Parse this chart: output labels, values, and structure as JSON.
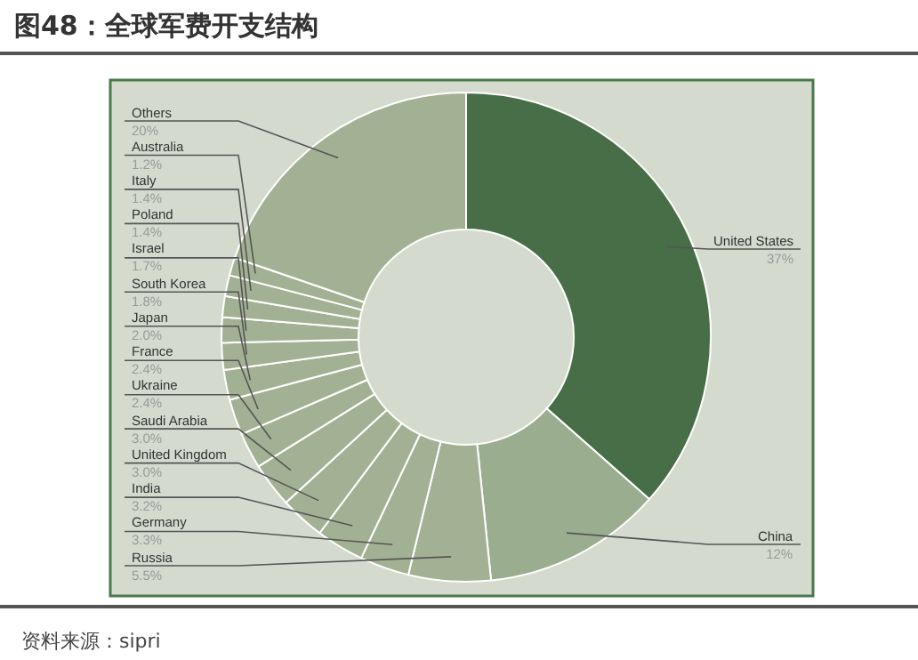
{
  "chart_data": {
    "type": "donut",
    "title": "图48：全球军费开支结构",
    "categories": [
      "United States",
      "China",
      "Russia",
      "Germany",
      "India",
      "United Kingdom",
      "Saudi Arabia",
      "Ukraine",
      "France",
      "Japan",
      "South Korea",
      "Israel",
      "Poland",
      "Italy",
      "Australia",
      "Others"
    ],
    "values": [
      37,
      12,
      5.5,
      3.3,
      3.2,
      3.0,
      3.0,
      2.4,
      2.4,
      2.0,
      1.8,
      1.7,
      1.4,
      1.4,
      1.2,
      20
    ],
    "value_labels": [
      "37%",
      "12%",
      "5.5%",
      "3.3%",
      "3.2%",
      "3.0%",
      "3.0%",
      "2.4%",
      "2.4%",
      "2.0%",
      "1.8%",
      "1.7%",
      "1.4%",
      "1.4%",
      "1.2%",
      "20%"
    ],
    "colors": [
      "#476e47",
      "#9bad8f",
      "#a2b193",
      "#a2b193",
      "#a2b193",
      "#a2b193",
      "#a2b193",
      "#a2b193",
      "#a2b193",
      "#a2b193",
      "#a2b193",
      "#a2b193",
      "#a2b193",
      "#a2b193",
      "#a2b193",
      "#a2b193"
    ],
    "annotations": [
      "资料来源：sipri"
    ],
    "legend": false
  }
}
